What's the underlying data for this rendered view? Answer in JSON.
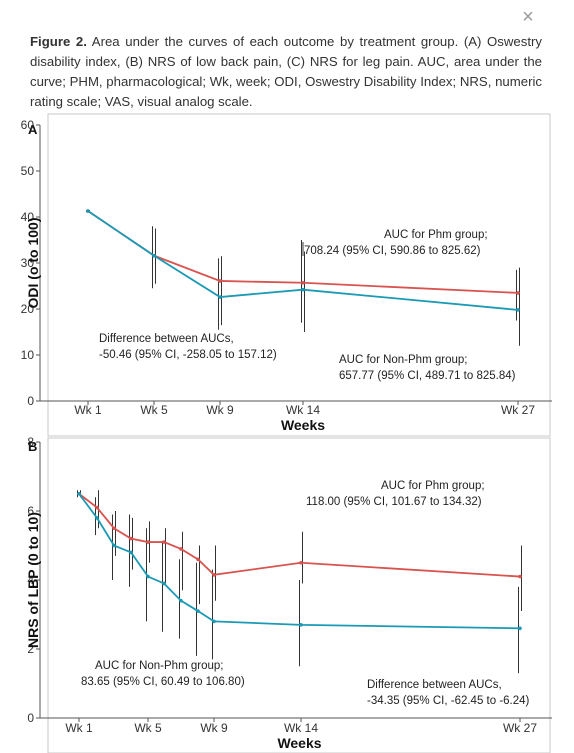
{
  "modal": {
    "close_label": "×"
  },
  "caption": {
    "label": "Figure 2.",
    "text": " Area under the curves of each outcome by treatment group. (A) Oswestry disability index, (B) NRS of low back pain, (C) NRS for leg pain. AUC, area under the curve; PHM, pharmacological; Wk, week; ODI, Oswestry Disability Index; NRS, numeric rating scale; VAS, visual analog scale."
  },
  "colors": {
    "phm": "#d9534f",
    "non_phm": "#1a9ab5",
    "errorbar": "#333333"
  },
  "chart_data": [
    {
      "type": "line",
      "panel": "A",
      "xlabel": "Weeks",
      "ylabel": "ODI (o to 100)",
      "ylim": [
        0,
        60
      ],
      "yticks": [
        0,
        10,
        20,
        30,
        40,
        50,
        60
      ],
      "xticks": [
        1,
        5,
        9,
        14,
        27
      ],
      "xtick_labels": [
        "Wk 1",
        "Wk 5",
        "Wk 9",
        "Wk 14",
        "Wk 27"
      ],
      "series": [
        {
          "key": "phm",
          "x": [
            1,
            5,
            9,
            14,
            27
          ],
          "values": [
            41.3,
            31.6,
            26.1,
            25.7,
            23.5
          ],
          "err_low": [
            41,
            25.5,
            16.5,
            15,
            12
          ],
          "err_high": [
            41.5,
            37.5,
            31.5,
            32.5,
            29
          ]
        },
        {
          "key": "non_phm",
          "x": [
            1,
            5,
            9,
            14,
            27
          ],
          "values": [
            41.3,
            31.6,
            22.6,
            24.2,
            19.8
          ],
          "err_low": [
            41,
            24.5,
            15.5,
            17,
            17.5
          ],
          "err_high": [
            41.5,
            38,
            31,
            35,
            28.5
          ]
        }
      ],
      "annotations": [
        {
          "lines": [
            "AUC for Phm group;",
            "708.24 (95% CI, 590.86 to 825.62)"
          ]
        },
        {
          "lines": [
            "Difference between AUCs,",
            "-50.46 (95% CI, -258.05 to 157.12)"
          ]
        },
        {
          "lines": [
            "AUC for Non-Phm group;",
            "657.77 (95% CI, 489.71 to 825.84)"
          ]
        }
      ]
    },
    {
      "type": "line",
      "panel": "B",
      "xlabel": "Weeks",
      "ylabel": "NRS of LBP (0 to 10)",
      "ylim": [
        0,
        8
      ],
      "yticks": [
        0,
        2,
        4,
        6,
        8
      ],
      "xticks": [
        1,
        5,
        9,
        14,
        27
      ],
      "xtick_labels": [
        "Wk 1",
        "Wk 5",
        "Wk 9",
        "Wk 14",
        "Wk 27"
      ],
      "series": [
        {
          "key": "phm",
          "x": [
            1,
            2,
            3,
            4,
            5,
            6,
            7,
            8,
            9,
            14,
            27
          ],
          "values": [
            6.5,
            6.1,
            5.5,
            5.2,
            5.1,
            5.1,
            4.9,
            4.6,
            4.15,
            4.5,
            4.1
          ],
          "err_low": [
            6.4,
            5.5,
            4.7,
            4.3,
            4.5,
            3.9,
            3.7,
            3.3,
            3.4,
            3.9,
            3.1
          ],
          "err_high": [
            6.6,
            6.6,
            6.0,
            5.8,
            5.7,
            5.5,
            5.4,
            5.0,
            5.0,
            5.4,
            5.0
          ]
        },
        {
          "key": "non_phm",
          "x": [
            1,
            2,
            3,
            4,
            5,
            6,
            7,
            8,
            9,
            14,
            27
          ],
          "values": [
            6.5,
            5.8,
            5.0,
            4.8,
            4.1,
            3.9,
            3.4,
            3.1,
            2.8,
            2.7,
            2.6
          ],
          "err_low": [
            6.4,
            5.3,
            4.0,
            3.8,
            2.8,
            2.5,
            2.3,
            1.8,
            1.7,
            1.5,
            1.3
          ],
          "err_high": [
            6.6,
            6.4,
            5.9,
            5.9,
            5.5,
            5.1,
            4.6,
            4.5,
            4.3,
            4.0,
            3.8
          ]
        }
      ],
      "annotations": [
        {
          "lines": [
            "AUC for Phm group;",
            "118.00 (95% CI, 101.67 to 134.32)"
          ]
        },
        {
          "lines": [
            "AUC for Non-Phm group;",
            "83.65 (95% CI, 60.49 to 106.80)"
          ]
        },
        {
          "lines": [
            "Difference between AUCs,",
            "-34.35 (95% CI, -62.45 to -6.24)"
          ]
        }
      ]
    }
  ]
}
